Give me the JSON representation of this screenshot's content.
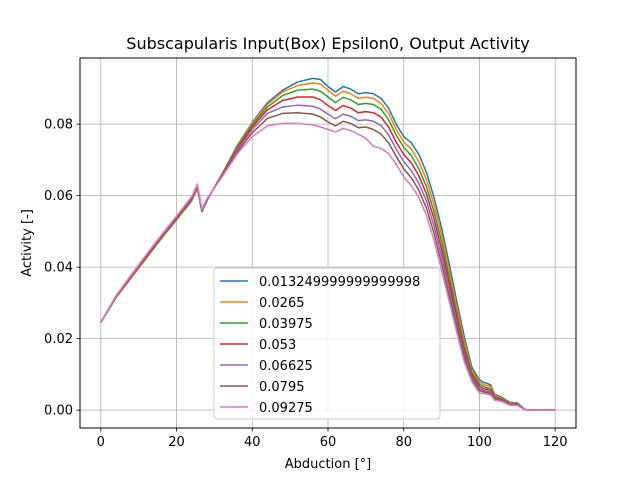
{
  "chart_data": {
    "type": "line",
    "title": "Subscapularis Input(Box) Epsilon0, Output Activity",
    "xlabel": "Abduction [°]",
    "ylabel": "Activity [-]",
    "xlim": [
      -5.5,
      125.5
    ],
    "ylim": [
      -0.005,
      0.0985
    ],
    "xticks": [
      0,
      20,
      40,
      60,
      80,
      100,
      120
    ],
    "yticks": [
      0.0,
      0.02,
      0.04,
      0.06,
      0.08
    ],
    "xtick_labels": [
      "0",
      "20",
      "40",
      "60",
      "80",
      "100",
      "120"
    ],
    "ytick_labels": [
      "0.00",
      "0.02",
      "0.04",
      "0.06",
      "0.08"
    ],
    "grid": true,
    "legend_position": "lower center",
    "x": [
      0,
      2,
      4,
      8,
      12,
      16,
      20,
      24,
      25.5,
      26.7,
      28,
      32,
      36,
      40,
      44,
      48,
      52,
      56,
      58,
      60,
      62,
      64,
      66,
      68,
      70,
      72,
      74,
      76,
      78,
      80,
      82,
      84,
      86,
      88,
      90,
      92,
      94,
      96,
      98,
      100,
      101,
      102,
      103,
      104,
      106,
      108,
      110,
      112,
      114,
      120
    ],
    "series": [
      {
        "name": "0.013249999999999998",
        "color": "#1f77b4",
        "values": [
          0.0245,
          0.028,
          0.0315,
          0.037,
          0.0425,
          0.048,
          0.0532,
          0.0585,
          0.062,
          0.0555,
          0.0585,
          0.066,
          0.074,
          0.0805,
          0.086,
          0.0895,
          0.0918,
          0.0928,
          0.0925,
          0.0905,
          0.089,
          0.0905,
          0.0898,
          0.0885,
          0.0888,
          0.0885,
          0.0872,
          0.0845,
          0.08,
          0.0765,
          0.0748,
          0.0715,
          0.0665,
          0.0595,
          0.051,
          0.041,
          0.0305,
          0.0205,
          0.012,
          0.0085,
          0.0078,
          0.0075,
          0.007,
          0.0045,
          0.0035,
          0.0022,
          0.002,
          0.0002,
          0.0,
          0.0
        ]
      },
      {
        "name": "0.0265",
        "color": "#ff7f0e",
        "values": [
          0.0245,
          0.028,
          0.0315,
          0.037,
          0.0425,
          0.048,
          0.0533,
          0.0587,
          0.0622,
          0.0556,
          0.0586,
          0.066,
          0.0738,
          0.0803,
          0.0855,
          0.089,
          0.0908,
          0.0915,
          0.0912,
          0.0895,
          0.0878,
          0.0892,
          0.0885,
          0.0872,
          0.0875,
          0.0872,
          0.0858,
          0.083,
          0.0785,
          0.075,
          0.073,
          0.0695,
          0.0645,
          0.0575,
          0.049,
          0.039,
          0.0288,
          0.0192,
          0.0112,
          0.0078,
          0.0072,
          0.0069,
          0.0066,
          0.0042,
          0.0032,
          0.002,
          0.0018,
          0.0001,
          0.0,
          0.0
        ]
      },
      {
        "name": "0.03975",
        "color": "#2ca02c",
        "values": [
          0.0245,
          0.028,
          0.0316,
          0.0372,
          0.0427,
          0.0482,
          0.0535,
          0.0589,
          0.0624,
          0.0557,
          0.0587,
          0.0659,
          0.0735,
          0.0798,
          0.0848,
          0.088,
          0.0895,
          0.0898,
          0.0892,
          0.0876,
          0.086,
          0.0875,
          0.0868,
          0.0855,
          0.0858,
          0.0855,
          0.0842,
          0.0812,
          0.077,
          0.0735,
          0.0712,
          0.0675,
          0.0625,
          0.0555,
          0.047,
          0.0372,
          0.0272,
          0.0178,
          0.0105,
          0.0072,
          0.0066,
          0.0063,
          0.006,
          0.0038,
          0.003,
          0.0018,
          0.0017,
          0.0001,
          0.0,
          0.0
        ]
      },
      {
        "name": "0.053",
        "color": "#d62728",
        "values": [
          0.0245,
          0.0281,
          0.0317,
          0.0373,
          0.0429,
          0.0484,
          0.0537,
          0.0591,
          0.0626,
          0.0558,
          0.0588,
          0.0658,
          0.0732,
          0.0792,
          0.084,
          0.0866,
          0.0876,
          0.0876,
          0.0868,
          0.0852,
          0.0838,
          0.0852,
          0.0845,
          0.0832,
          0.0835,
          0.0832,
          0.082,
          0.0792,
          0.075,
          0.0715,
          0.0692,
          0.0655,
          0.0605,
          0.0535,
          0.045,
          0.0355,
          0.0258,
          0.0166,
          0.0098,
          0.0066,
          0.006,
          0.0058,
          0.0055,
          0.0035,
          0.0028,
          0.0017,
          0.0016,
          0.0001,
          0.0,
          0.0
        ]
      },
      {
        "name": "0.06625",
        "color": "#9467bd",
        "values": [
          0.0245,
          0.0282,
          0.0318,
          0.0375,
          0.0431,
          0.0486,
          0.0539,
          0.0593,
          0.0628,
          0.0559,
          0.0589,
          0.0656,
          0.0728,
          0.0785,
          0.083,
          0.0848,
          0.0853,
          0.085,
          0.0842,
          0.0828,
          0.0815,
          0.0828,
          0.0822,
          0.081,
          0.0812,
          0.0808,
          0.0796,
          0.077,
          0.073,
          0.0695,
          0.067,
          0.0635,
          0.0585,
          0.0515,
          0.043,
          0.0338,
          0.0245,
          0.0155,
          0.0092,
          0.006,
          0.0055,
          0.0053,
          0.005,
          0.0032,
          0.0026,
          0.0016,
          0.0015,
          0.0001,
          0.0,
          0.0
        ]
      },
      {
        "name": "0.0795",
        "color": "#8c564b",
        "values": [
          0.0245,
          0.0282,
          0.0319,
          0.0376,
          0.0433,
          0.0488,
          0.0541,
          0.0595,
          0.063,
          0.056,
          0.059,
          0.0654,
          0.0722,
          0.0776,
          0.0816,
          0.083,
          0.0832,
          0.0828,
          0.082,
          0.0806,
          0.0795,
          0.0808,
          0.0802,
          0.079,
          0.0792,
          0.0785,
          0.0772,
          0.0748,
          0.071,
          0.0675,
          0.065,
          0.0615,
          0.0565,
          0.0495,
          0.041,
          0.032,
          0.0232,
          0.0145,
          0.0086,
          0.0055,
          0.0051,
          0.0049,
          0.0046,
          0.003,
          0.0025,
          0.0015,
          0.0014,
          0.0001,
          0.0,
          0.0
        ]
      },
      {
        "name": "0.09275",
        "color": "#e377c2",
        "values": [
          0.0245,
          0.0283,
          0.032,
          0.0378,
          0.0435,
          0.049,
          0.0543,
          0.0597,
          0.0632,
          0.0562,
          0.0591,
          0.0652,
          0.0716,
          0.0765,
          0.0795,
          0.0802,
          0.0802,
          0.0798,
          0.0792,
          0.0785,
          0.0778,
          0.0788,
          0.0782,
          0.0772,
          0.076,
          0.0738,
          0.0732,
          0.0718,
          0.0688,
          0.0652,
          0.0628,
          0.0595,
          0.0545,
          0.0475,
          0.039,
          0.0305,
          0.0218,
          0.0135,
          0.008,
          0.0048,
          0.0046,
          0.0045,
          0.0042,
          0.0028,
          0.0024,
          0.0014,
          0.0013,
          0.0001,
          0.0,
          0.0
        ]
      }
    ]
  }
}
